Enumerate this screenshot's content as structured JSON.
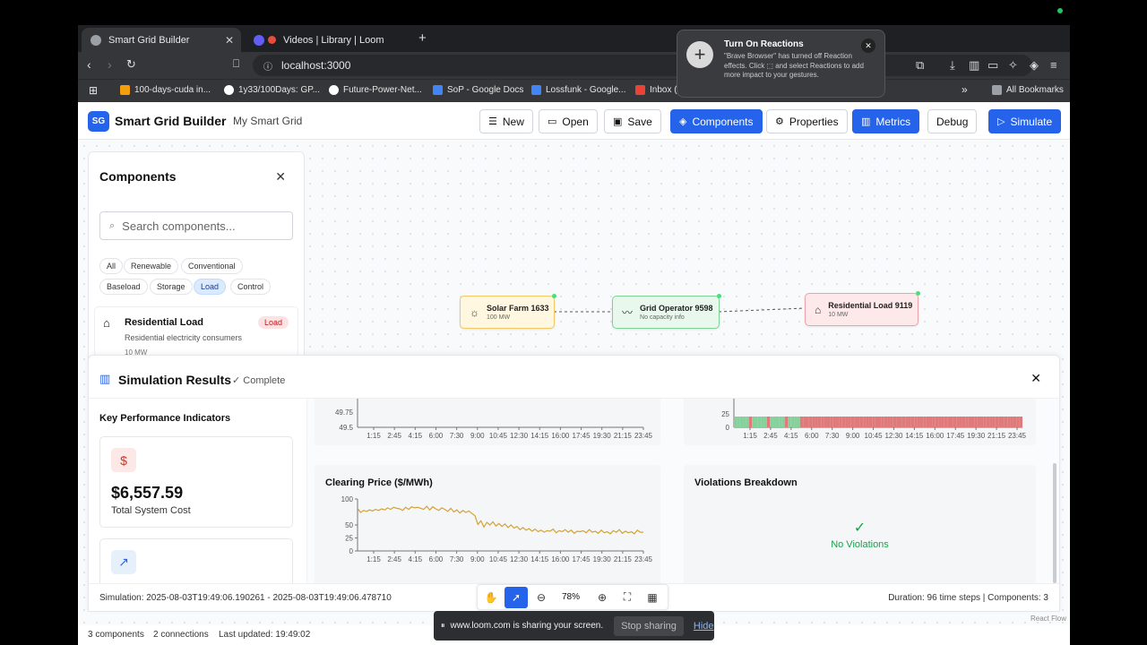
{
  "browser": {
    "tabs": [
      {
        "title": "Smart Grid Builder",
        "active": true
      },
      {
        "title": "Videos | Library | Loom",
        "active": false
      }
    ],
    "url": "localhost:3000",
    "bookmarks": [
      "100-days-cuda in...",
      "1y33/100Days: GP...",
      "Future-Power-Net...",
      "SoP - Google Docs",
      "Lossfunk - Google...",
      "Inbox ("
    ],
    "all_bookmarks": "All Bookmarks"
  },
  "reaction_popup": {
    "title": "Turn On Reactions",
    "body": "\"Brave Browser\" has turned off Reaction effects. Click ⬚ and select Reactions to add more impact to your gestures."
  },
  "app": {
    "logo": "SG",
    "title": "Smart Grid Builder",
    "grid_name": "My Smart Grid",
    "buttons": {
      "new": "New",
      "open": "Open",
      "save": "Save",
      "components": "Components",
      "properties": "Properties",
      "metrics": "Metrics",
      "debug": "Debug",
      "simulate": "Simulate"
    }
  },
  "nodes": [
    {
      "title": "Solar Farm 1633",
      "sub": "100 MW"
    },
    {
      "title": "Grid Operator 9598",
      "sub": "No capacity info"
    },
    {
      "title": "Residential Load 9119",
      "sub": "10 MW"
    }
  ],
  "components_panel": {
    "title": "Components",
    "search_placeholder": "Search components...",
    "filters": [
      "All",
      "Renewable",
      "Conventional",
      "Baseload",
      "Storage",
      "Load",
      "Control"
    ],
    "selected_filter": "Load",
    "items": [
      {
        "name": "Residential Load",
        "badge": "Load",
        "desc": "Residential electricity consumers",
        "capacity": "10 MW"
      }
    ]
  },
  "simulation": {
    "title": "Simulation Results",
    "status": "✓ Complete",
    "kpi_heading": "Key Performance Indicators",
    "kpis": [
      {
        "value": "$6,557.59",
        "label": "Total System Cost"
      }
    ],
    "footer_left": "Simulation: 2025-08-03T19:49:06.190261 - 2025-08-03T19:49:06.478710",
    "footer_right": "Duration: 96 time steps | Components: 3",
    "violations_title": "Violations Breakdown",
    "no_violations": "No Violations"
  },
  "controls": {
    "zoom": "78%"
  },
  "status_bar": {
    "components": "3 components",
    "connections": "2 connections",
    "updated": "Last updated: 19:49:02"
  },
  "react_flow": "React Flow",
  "loom": {
    "message": "www.loom.com is sharing your screen.",
    "stop": "Stop sharing",
    "hide": "Hide"
  },
  "chart_data": [
    {
      "type": "line",
      "title": "Clearing Price ($/MWh)",
      "x_ticks": [
        "1:15",
        "2:45",
        "4:15",
        "6:00",
        "7:30",
        "9:00",
        "10:45",
        "12:30",
        "14:15",
        "16:00",
        "17:45",
        "19:30",
        "21:15",
        "23:45"
      ],
      "y_ticks": [
        0,
        25,
        50,
        100
      ],
      "ylim": [
        0,
        100
      ],
      "color": "#d4a237",
      "values": [
        82,
        74,
        78,
        76,
        79,
        77,
        80,
        78,
        81,
        79,
        83,
        80,
        84,
        82,
        81,
        78,
        84,
        80,
        85,
        83,
        84,
        82,
        80,
        86,
        79,
        85,
        81,
        78,
        83,
        80,
        76,
        82,
        75,
        79,
        73,
        78,
        74,
        77,
        72,
        68,
        51,
        58,
        46,
        55,
        50,
        56,
        48,
        53,
        47,
        52,
        45,
        50,
        44,
        47,
        41,
        45,
        40,
        43,
        38,
        42,
        37,
        40,
        36,
        39,
        38,
        42,
        35,
        39,
        37,
        41,
        36,
        40,
        34,
        38,
        37,
        39,
        35,
        41,
        36,
        38,
        34,
        40,
        35,
        37,
        33,
        39,
        36,
        41,
        34,
        38,
        35,
        37,
        33,
        40,
        36,
        36
      ]
    },
    {
      "type": "line",
      "title": "",
      "x_ticks": [
        "1:15",
        "2:45",
        "4:15",
        "6:00",
        "7:30",
        "9:00",
        "10:45",
        "12:30",
        "14:15",
        "16:00",
        "17:45",
        "19:30",
        "21:15",
        "23:45"
      ],
      "y_ticks": [
        49.5,
        49.75
      ]
    },
    {
      "type": "bar",
      "title": "",
      "x_ticks": [
        "1:15",
        "2:45",
        "4:15",
        "6:00",
        "7:30",
        "9:00",
        "10:45",
        "12:30",
        "14:15",
        "16:00",
        "17:45",
        "19:30",
        "21:15",
        "23:45"
      ],
      "y_ticks": [
        0,
        25
      ],
      "colors": {
        "ok": "#86d19b",
        "violation": "#e07a7a"
      }
    }
  ]
}
